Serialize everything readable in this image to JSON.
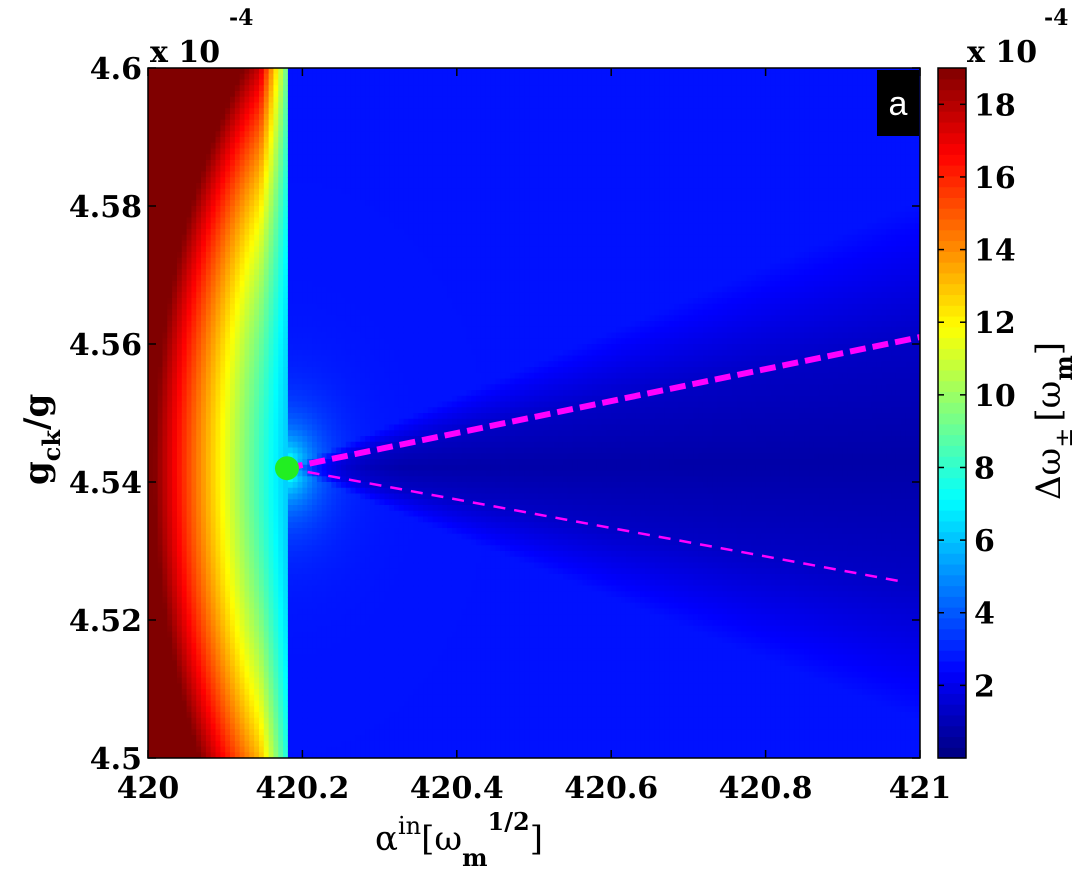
{
  "chart_data": {
    "type": "heatmap",
    "panel_label": "a",
    "x": {
      "label_base": "α",
      "label_sup": "in",
      "label_unit_open": "[ω",
      "label_unit_sub": "m",
      "label_unit_sup": "1/2",
      "label_unit_close": "]",
      "range": [
        420,
        421
      ],
      "ticks": [
        "420",
        "420.2",
        "420.4",
        "420.6",
        "420.8",
        "421"
      ]
    },
    "y": {
      "label_main": "g",
      "label_sub": "ck",
      "label_tail": "/g",
      "multiplier": "x 10",
      "multiplier_exp": "-4",
      "range": [
        4.5,
        4.6
      ],
      "ticks": [
        "4.5",
        "4.52",
        "4.54",
        "4.56",
        "4.58",
        "4.6"
      ]
    },
    "colorbar": {
      "label_main": "Δω",
      "label_sub": "±",
      "label_unit": "[ω",
      "label_unit_sub": "m",
      "label_close": "]",
      "multiplier": "x 10",
      "multiplier_exp": "-4",
      "range": [
        0,
        19
      ],
      "ticks": [
        "2",
        "4",
        "6",
        "8",
        "10",
        "12",
        "14",
        "16",
        "18"
      ],
      "colormap": "jet"
    },
    "exceptional_point": {
      "x": 420.18,
      "y": 4.542,
      "color": "#22ee22"
    },
    "branches": [
      {
        "style": "thick-dashed",
        "color": "#ff00ff",
        "from": [
          420.18,
          4.542
        ],
        "to": [
          421.0,
          4.561
        ]
      },
      {
        "style": "thin-dashed",
        "color": "#ff00ff",
        "from": [
          420.18,
          4.542
        ],
        "to": [
          420.98,
          4.5255
        ]
      }
    ]
  }
}
